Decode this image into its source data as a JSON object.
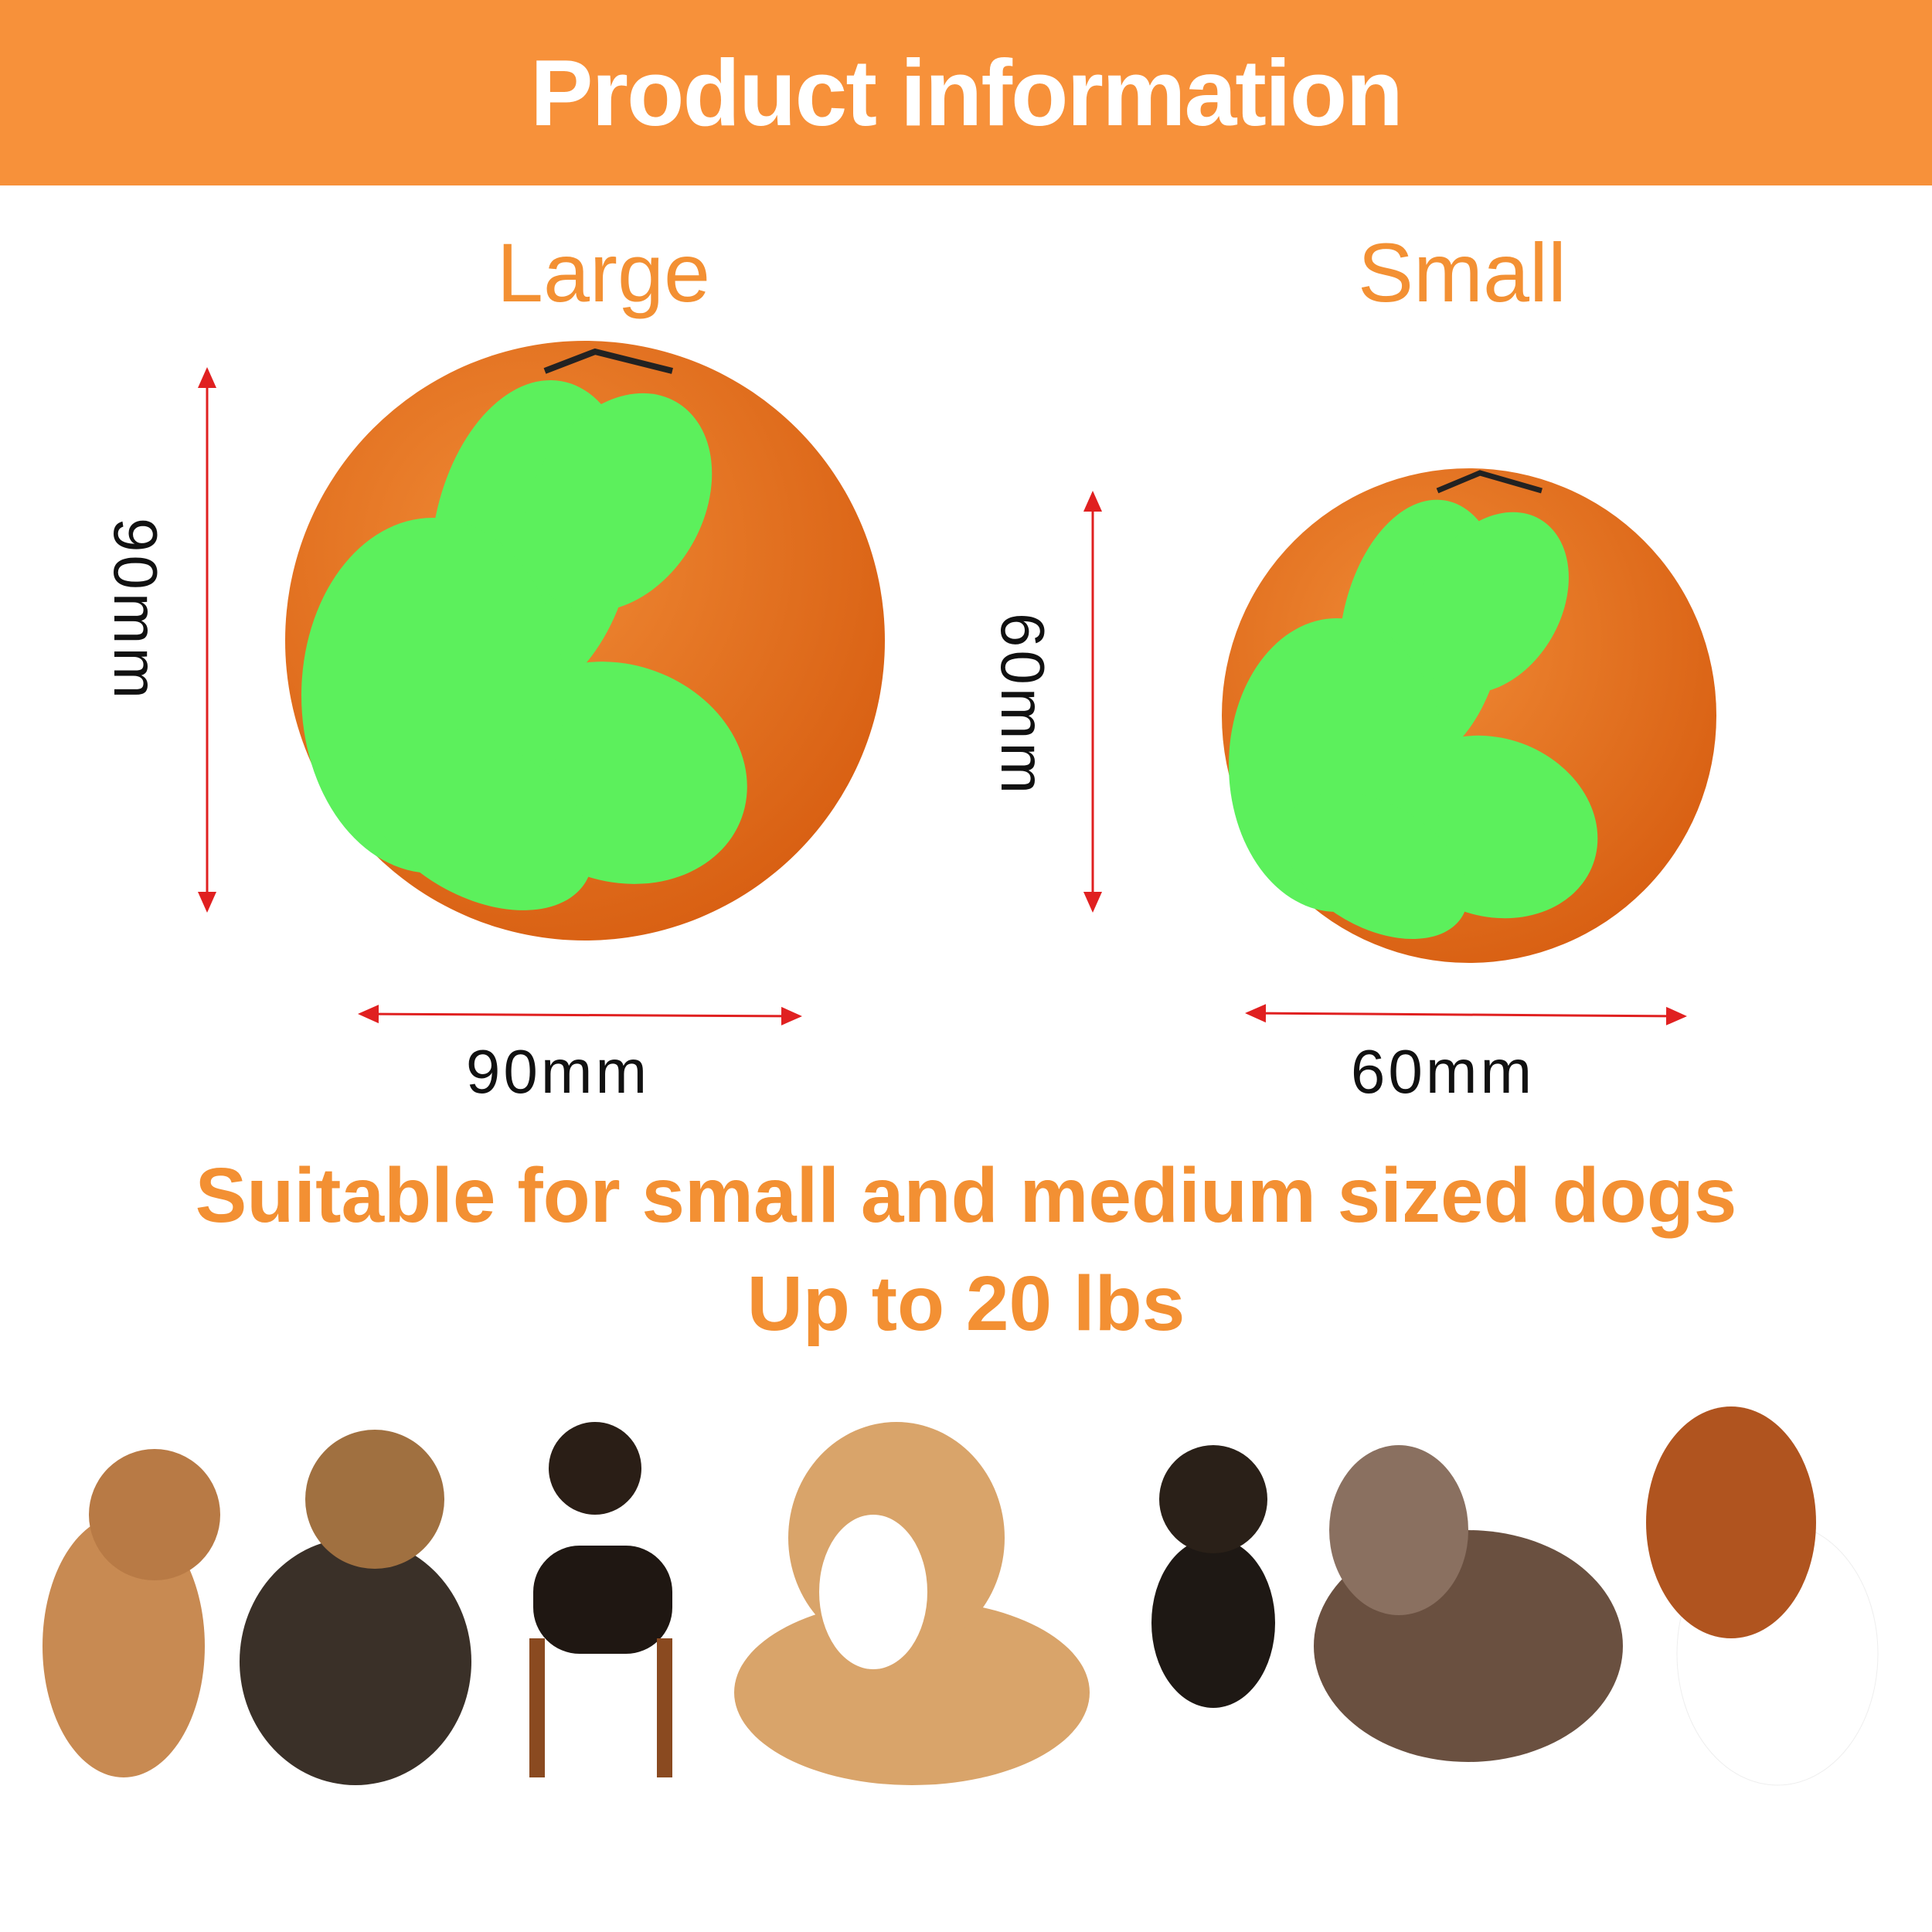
{
  "header": {
    "title": "Product information"
  },
  "sizes": [
    {
      "label": "Large",
      "width": "90mm",
      "height": "90mm"
    },
    {
      "label": "Small",
      "width": "60mm",
      "height": "60mm"
    }
  ],
  "notes": {
    "line1": "Suitable for small and medium sized dogs",
    "line2": "Up to 20 lbs"
  },
  "colors": {
    "accent": "#f7913a",
    "text_orange": "#f39033",
    "ball_orange": "#e8741e",
    "ball_green": "#5cf05c",
    "arrow": "#e02020"
  }
}
